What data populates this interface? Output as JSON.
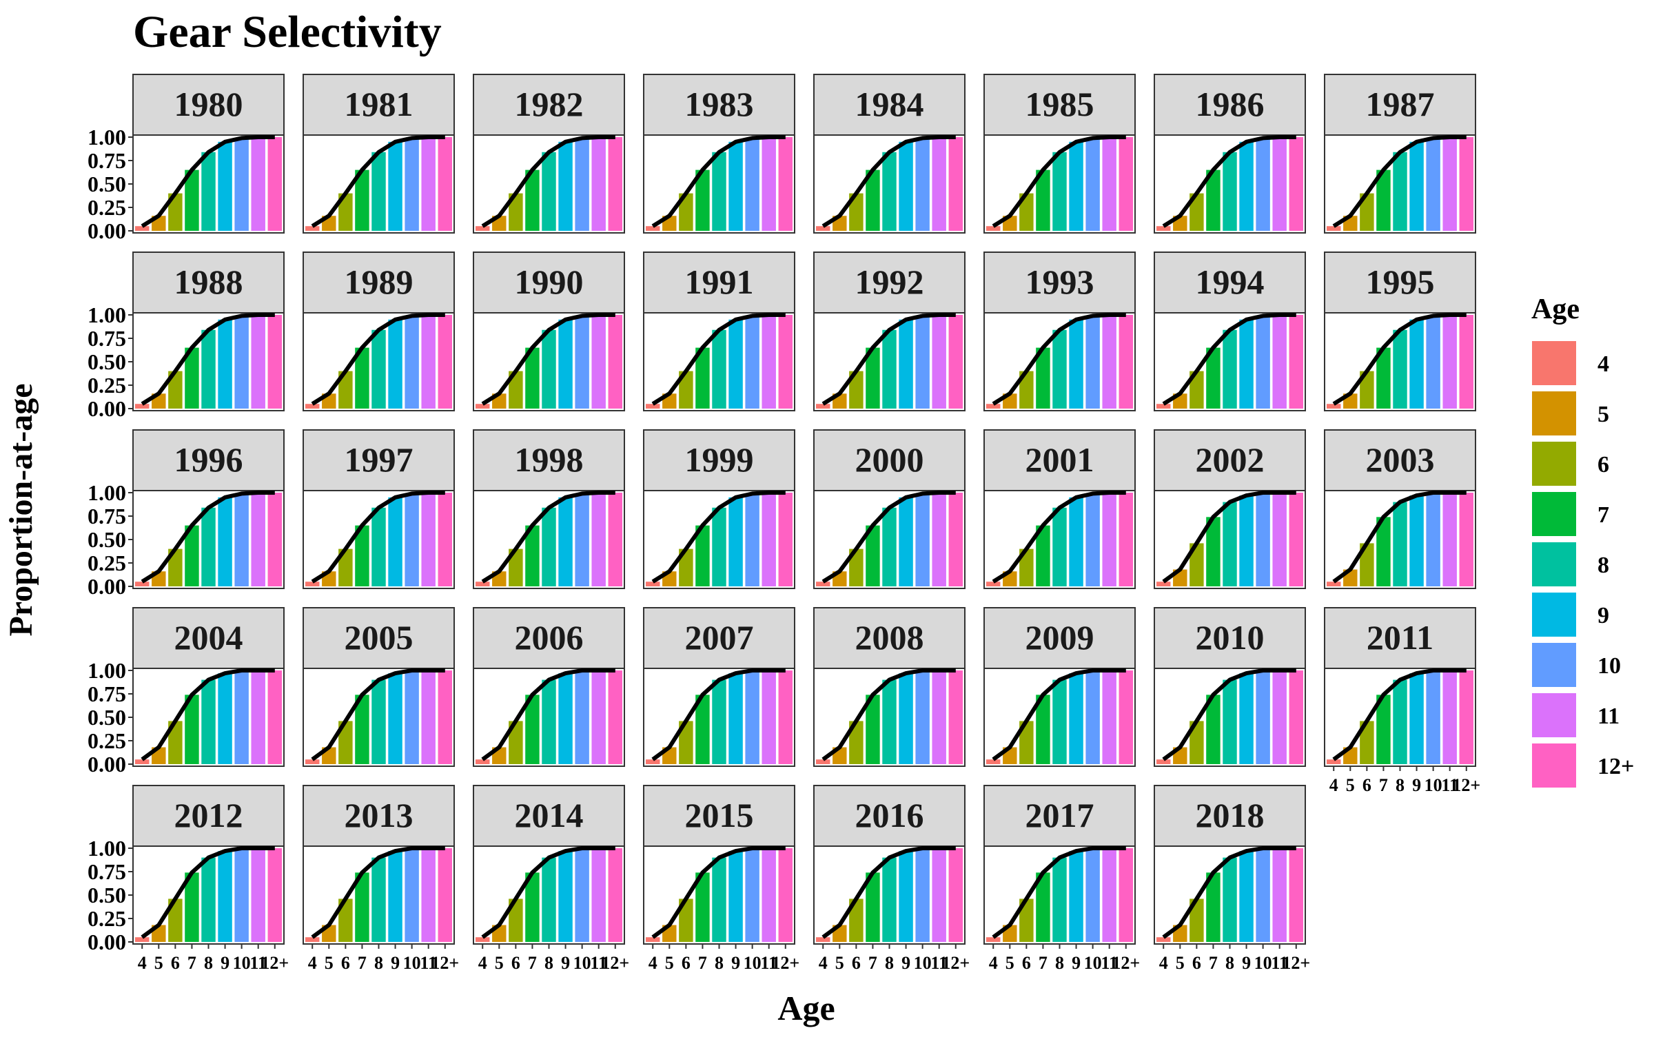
{
  "chart_data": {
    "type": "bar",
    "title": "Gear Selectivity",
    "xlabel": "Age",
    "ylabel": "Proportion-at-age",
    "ylim": [
      0,
      1
    ],
    "yticks": [
      "0.00",
      "0.25",
      "0.50",
      "0.75",
      "1.00"
    ],
    "categories": [
      "4",
      "5",
      "6",
      "7",
      "8",
      "9",
      "10",
      "11",
      "12+"
    ],
    "legend": {
      "title": "Age",
      "position": "right",
      "entries": [
        "4",
        "5",
        "6",
        "7",
        "8",
        "9",
        "10",
        "11",
        "12+"
      ]
    },
    "colors": [
      "#F8766D",
      "#D39200",
      "#93AA00",
      "#00BA38",
      "#00C19F",
      "#00B9E3",
      "#619CFF",
      "#DB72FB",
      "#FF61C3"
    ],
    "grid": false,
    "facet_layout": "5 rows x 8 columns, by year",
    "line_color": "#000000",
    "panels": [
      {
        "year": "1980",
        "values": [
          0.05,
          0.16,
          0.4,
          0.65,
          0.84,
          0.95,
          0.99,
          1.0,
          1.0
        ]
      },
      {
        "year": "1981",
        "values": [
          0.05,
          0.16,
          0.4,
          0.65,
          0.84,
          0.95,
          0.99,
          1.0,
          1.0
        ]
      },
      {
        "year": "1982",
        "values": [
          0.05,
          0.16,
          0.4,
          0.65,
          0.84,
          0.95,
          0.99,
          1.0,
          1.0
        ]
      },
      {
        "year": "1983",
        "values": [
          0.05,
          0.16,
          0.4,
          0.65,
          0.84,
          0.95,
          0.99,
          1.0,
          1.0
        ]
      },
      {
        "year": "1984",
        "values": [
          0.05,
          0.16,
          0.4,
          0.65,
          0.84,
          0.95,
          0.99,
          1.0,
          1.0
        ]
      },
      {
        "year": "1985",
        "values": [
          0.05,
          0.16,
          0.4,
          0.65,
          0.84,
          0.95,
          0.99,
          1.0,
          1.0
        ]
      },
      {
        "year": "1986",
        "values": [
          0.05,
          0.16,
          0.4,
          0.65,
          0.84,
          0.95,
          0.99,
          1.0,
          1.0
        ]
      },
      {
        "year": "1987",
        "values": [
          0.05,
          0.16,
          0.4,
          0.65,
          0.84,
          0.95,
          0.99,
          1.0,
          1.0
        ]
      },
      {
        "year": "1988",
        "values": [
          0.05,
          0.16,
          0.4,
          0.65,
          0.84,
          0.95,
          0.99,
          1.0,
          1.0
        ]
      },
      {
        "year": "1989",
        "values": [
          0.05,
          0.16,
          0.4,
          0.65,
          0.84,
          0.95,
          0.99,
          1.0,
          1.0
        ]
      },
      {
        "year": "1990",
        "values": [
          0.05,
          0.16,
          0.4,
          0.65,
          0.84,
          0.95,
          0.99,
          1.0,
          1.0
        ]
      },
      {
        "year": "1991",
        "values": [
          0.05,
          0.16,
          0.4,
          0.65,
          0.84,
          0.95,
          0.99,
          1.0,
          1.0
        ]
      },
      {
        "year": "1992",
        "values": [
          0.05,
          0.16,
          0.4,
          0.65,
          0.84,
          0.95,
          0.99,
          1.0,
          1.0
        ]
      },
      {
        "year": "1993",
        "values": [
          0.05,
          0.16,
          0.4,
          0.65,
          0.84,
          0.95,
          0.99,
          1.0,
          1.0
        ]
      },
      {
        "year": "1994",
        "values": [
          0.05,
          0.16,
          0.4,
          0.65,
          0.84,
          0.95,
          0.99,
          1.0,
          1.0
        ]
      },
      {
        "year": "1995",
        "values": [
          0.05,
          0.16,
          0.4,
          0.65,
          0.84,
          0.95,
          0.99,
          1.0,
          1.0
        ]
      },
      {
        "year": "1996",
        "values": [
          0.05,
          0.16,
          0.4,
          0.65,
          0.84,
          0.95,
          0.99,
          1.0,
          1.0
        ]
      },
      {
        "year": "1997",
        "values": [
          0.05,
          0.16,
          0.4,
          0.65,
          0.84,
          0.95,
          0.99,
          1.0,
          1.0
        ]
      },
      {
        "year": "1998",
        "values": [
          0.05,
          0.16,
          0.4,
          0.65,
          0.84,
          0.95,
          0.99,
          1.0,
          1.0
        ]
      },
      {
        "year": "1999",
        "values": [
          0.05,
          0.16,
          0.4,
          0.65,
          0.84,
          0.95,
          0.99,
          1.0,
          1.0
        ]
      },
      {
        "year": "2000",
        "values": [
          0.05,
          0.16,
          0.4,
          0.65,
          0.84,
          0.95,
          0.99,
          1.0,
          1.0
        ]
      },
      {
        "year": "2001",
        "values": [
          0.05,
          0.16,
          0.4,
          0.65,
          0.84,
          0.95,
          0.99,
          1.0,
          1.0
        ]
      },
      {
        "year": "2002",
        "values": [
          0.05,
          0.18,
          0.46,
          0.74,
          0.9,
          0.97,
          1.0,
          1.0,
          1.0
        ]
      },
      {
        "year": "2003",
        "values": [
          0.05,
          0.18,
          0.46,
          0.74,
          0.9,
          0.97,
          1.0,
          1.0,
          1.0
        ]
      },
      {
        "year": "2004",
        "values": [
          0.05,
          0.18,
          0.46,
          0.74,
          0.9,
          0.97,
          1.0,
          1.0,
          1.0
        ]
      },
      {
        "year": "2005",
        "values": [
          0.05,
          0.18,
          0.46,
          0.74,
          0.9,
          0.97,
          1.0,
          1.0,
          1.0
        ]
      },
      {
        "year": "2006",
        "values": [
          0.05,
          0.18,
          0.46,
          0.74,
          0.9,
          0.97,
          1.0,
          1.0,
          1.0
        ]
      },
      {
        "year": "2007",
        "values": [
          0.05,
          0.18,
          0.46,
          0.74,
          0.9,
          0.97,
          1.0,
          1.0,
          1.0
        ]
      },
      {
        "year": "2008",
        "values": [
          0.05,
          0.18,
          0.46,
          0.74,
          0.9,
          0.97,
          1.0,
          1.0,
          1.0
        ]
      },
      {
        "year": "2009",
        "values": [
          0.05,
          0.18,
          0.46,
          0.74,
          0.9,
          0.97,
          1.0,
          1.0,
          1.0
        ]
      },
      {
        "year": "2010",
        "values": [
          0.05,
          0.18,
          0.46,
          0.74,
          0.9,
          0.97,
          1.0,
          1.0,
          1.0
        ]
      },
      {
        "year": "2011",
        "values": [
          0.05,
          0.18,
          0.46,
          0.74,
          0.9,
          0.97,
          1.0,
          1.0,
          1.0
        ]
      },
      {
        "year": "2012",
        "values": [
          0.05,
          0.18,
          0.46,
          0.74,
          0.9,
          0.97,
          1.0,
          1.0,
          1.0
        ]
      },
      {
        "year": "2013",
        "values": [
          0.05,
          0.18,
          0.46,
          0.74,
          0.9,
          0.97,
          1.0,
          1.0,
          1.0
        ]
      },
      {
        "year": "2014",
        "values": [
          0.05,
          0.18,
          0.46,
          0.74,
          0.9,
          0.97,
          1.0,
          1.0,
          1.0
        ]
      },
      {
        "year": "2015",
        "values": [
          0.05,
          0.18,
          0.46,
          0.74,
          0.9,
          0.97,
          1.0,
          1.0,
          1.0
        ]
      },
      {
        "year": "2016",
        "values": [
          0.05,
          0.18,
          0.46,
          0.74,
          0.9,
          0.97,
          1.0,
          1.0,
          1.0
        ]
      },
      {
        "year": "2017",
        "values": [
          0.05,
          0.18,
          0.46,
          0.74,
          0.9,
          0.97,
          1.0,
          1.0,
          1.0
        ]
      },
      {
        "year": "2018",
        "values": [
          0.05,
          0.18,
          0.46,
          0.74,
          0.9,
          0.97,
          1.0,
          1.0,
          1.0
        ]
      }
    ]
  }
}
